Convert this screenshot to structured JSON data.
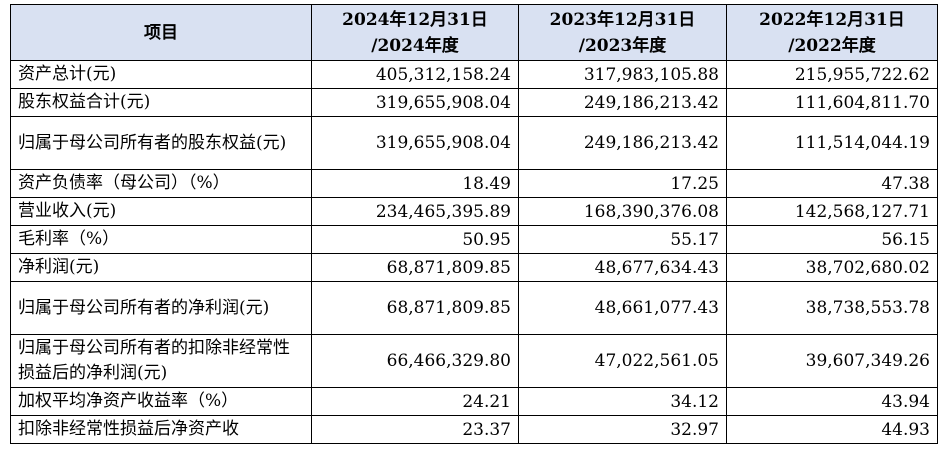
{
  "table": {
    "headers": {
      "item": "项目",
      "y2024_line1": "2024年12月31日",
      "y2024_line2": "/2024年度",
      "y2023_line1": "2023年12月31日",
      "y2023_line2": "/2023年度",
      "y2022_line1": "2022年12月31日",
      "y2022_line2": "/2022年度"
    },
    "rows": [
      {
        "label": "资产总计(元)",
        "v2024": "405,312,158.24",
        "v2023": "317,983,105.88",
        "v2022": "215,955,722.62"
      },
      {
        "label": "股东权益合计(元)",
        "v2024": "319,655,908.04",
        "v2023": "249,186,213.42",
        "v2022": "111,604,811.70"
      },
      {
        "label": "归属于母公司所有者的股东权益(元)",
        "v2024": "319,655,908.04",
        "v2023": "249,186,213.42",
        "v2022": "111,514,044.19"
      },
      {
        "label": "资产负债率（母公司）（%）",
        "v2024": "18.49",
        "v2023": "17.25",
        "v2022": "47.38"
      },
      {
        "label": "营业收入(元)",
        "v2024": "234,465,395.89",
        "v2023": "168,390,376.08",
        "v2022": "142,568,127.71"
      },
      {
        "label": "毛利率（%）",
        "v2024": "50.95",
        "v2023": "55.17",
        "v2022": "56.15"
      },
      {
        "label": "净利润(元)",
        "v2024": "68,871,809.85",
        "v2023": "48,677,634.43",
        "v2022": "38,702,680.02"
      },
      {
        "label": "归属于母公司所有者的净利润(元)",
        "v2024": "68,871,809.85",
        "v2023": "48,661,077.43",
        "v2022": "38,738,553.78"
      },
      {
        "label": "归属于母公司所有者的扣除非经常性损益后的净利润(元)",
        "v2024": "66,466,329.80",
        "v2023": "47,022,561.05",
        "v2022": "39,607,349.26"
      },
      {
        "label": "加权平均净资产收益率（%）",
        "v2024": "24.21",
        "v2023": "34.12",
        "v2022": "43.94"
      },
      {
        "label": "扣除非经常性损益后净资产收",
        "v2024": "23.37",
        "v2023": "32.97",
        "v2022": "44.93"
      }
    ]
  }
}
